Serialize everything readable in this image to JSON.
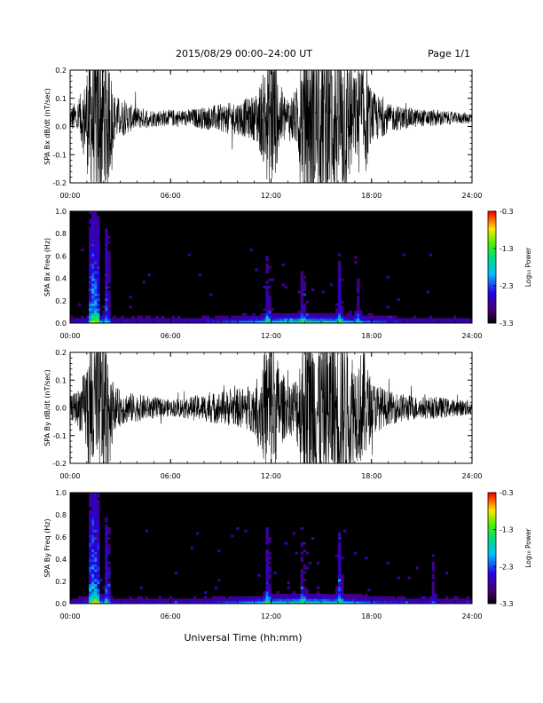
{
  "header": {
    "title": "2015/08/29  00:00–24:00 UT",
    "page": "Page 1/1"
  },
  "chart_data": [
    {
      "type": "line",
      "panel": "bx_timeseries",
      "ylabel": "SPA Bx dB/dt (nT/sec)",
      "ylim": [
        -0.2,
        0.2
      ],
      "yticks": [
        "0.2",
        "0.1",
        "0.0",
        "-0.1",
        "-0.2"
      ],
      "xticks": [
        "00:00",
        "06:00",
        "12:00",
        "18:00",
        "24:00"
      ],
      "xlim_hours": [
        0,
        24
      ],
      "envelope": {
        "hours": [
          0,
          0.5,
          0.9,
          1.2,
          1.6,
          2.2,
          2.6,
          3.2,
          4,
          5,
          6,
          7,
          8,
          9,
          10,
          11,
          11.5,
          12,
          12.5,
          13,
          13.5,
          14,
          14.5,
          15,
          15.5,
          16,
          16.5,
          17,
          17.5,
          18,
          19,
          20,
          21,
          22,
          23,
          24
        ],
        "amplitude": [
          0.04,
          0.07,
          0.13,
          0.3,
          0.3,
          0.3,
          0.09,
          0.06,
          0.04,
          0.03,
          0.03,
          0.03,
          0.04,
          0.05,
          0.06,
          0.08,
          0.15,
          0.3,
          0.12,
          0.08,
          0.1,
          0.3,
          0.3,
          0.3,
          0.3,
          0.3,
          0.3,
          0.15,
          0.25,
          0.1,
          0.05,
          0.04,
          0.03,
          0.03,
          0.02,
          0.02
        ],
        "offset": 0.03
      }
    },
    {
      "type": "heatmap",
      "panel": "bx_spectrogram",
      "ylabel": "SPA Bx Freq (Hz)",
      "ylim": [
        0,
        1.0
      ],
      "yticks": [
        "1.0",
        "0.8",
        "0.6",
        "0.4",
        "0.2",
        "0.0"
      ],
      "xticks": [
        "00:00",
        "06:00",
        "12:00",
        "18:00",
        "24:00"
      ],
      "colorbar": {
        "label": "Log₁₀ Power",
        "ticks": [
          "-0.3",
          "-1.3",
          "-2.3",
          "-3.3"
        ],
        "range": [
          -3.3,
          -0.3
        ]
      },
      "bursts": [
        {
          "hour": 1.3,
          "fmax": 1.0,
          "strength": 0.9
        },
        {
          "hour": 1.6,
          "fmax": 1.0,
          "strength": 0.8
        },
        {
          "hour": 2.2,
          "fmax": 0.85,
          "strength": 0.6
        },
        {
          "hour": 11.8,
          "fmax": 0.6,
          "strength": 0.4
        },
        {
          "hour": 13.9,
          "fmax": 0.5,
          "strength": 0.35
        },
        {
          "hour": 16.1,
          "fmax": 0.55,
          "strength": 0.4
        },
        {
          "hour": 17.2,
          "fmax": 0.4,
          "strength": 0.3
        }
      ]
    },
    {
      "type": "line",
      "panel": "by_timeseries",
      "ylabel": "SPA By dB/dt (nT/sec)",
      "ylim": [
        -0.2,
        0.2
      ],
      "yticks": [
        "0.2",
        "0.1",
        "0.0",
        "-0.1",
        "-0.2"
      ],
      "xticks": [
        "00:00",
        "06:00",
        "12:00",
        "18:00",
        "24:00"
      ],
      "xlim_hours": [
        0,
        24
      ],
      "envelope": {
        "hours": [
          0,
          0.5,
          0.9,
          1.2,
          1.6,
          2.2,
          2.6,
          3.2,
          4,
          5,
          6,
          7,
          8,
          9,
          10,
          11,
          11.5,
          12,
          12.5,
          13,
          13.5,
          14,
          14.5,
          15,
          15.5,
          16,
          16.5,
          17,
          17.5,
          18,
          19,
          20,
          21,
          22,
          23,
          24
        ],
        "amplitude": [
          0.04,
          0.07,
          0.14,
          0.3,
          0.3,
          0.3,
          0.08,
          0.06,
          0.05,
          0.04,
          0.03,
          0.04,
          0.05,
          0.06,
          0.07,
          0.09,
          0.18,
          0.3,
          0.15,
          0.09,
          0.12,
          0.3,
          0.3,
          0.3,
          0.3,
          0.3,
          0.3,
          0.18,
          0.22,
          0.1,
          0.06,
          0.05,
          0.04,
          0.04,
          0.03,
          0.03
        ],
        "offset": 0.0
      }
    },
    {
      "type": "heatmap",
      "panel": "by_spectrogram",
      "ylabel": "SPA By Freq (Hz)",
      "ylim": [
        0,
        1.0
      ],
      "yticks": [
        "1.0",
        "0.8",
        "0.6",
        "0.4",
        "0.2",
        "0.0"
      ],
      "xticks": [
        "00:00",
        "06:00",
        "12:00",
        "18:00",
        "24:00"
      ],
      "colorbar": {
        "label": "Log₁₀ Power",
        "ticks": [
          "-0.3",
          "-1.3",
          "-2.3",
          "-3.3"
        ],
        "range": [
          -3.3,
          -0.3
        ]
      },
      "bursts": [
        {
          "hour": 1.3,
          "fmax": 1.0,
          "strength": 0.9
        },
        {
          "hour": 1.6,
          "fmax": 1.0,
          "strength": 0.8
        },
        {
          "hour": 2.2,
          "fmax": 0.8,
          "strength": 0.55
        },
        {
          "hour": 11.8,
          "fmax": 0.7,
          "strength": 0.45
        },
        {
          "hour": 13.9,
          "fmax": 0.55,
          "strength": 0.35
        },
        {
          "hour": 16.1,
          "fmax": 0.65,
          "strength": 0.45
        },
        {
          "hour": 21.7,
          "fmax": 0.7,
          "strength": 0.25
        }
      ]
    }
  ],
  "xlabel": "Universal Time (hh:mm)"
}
